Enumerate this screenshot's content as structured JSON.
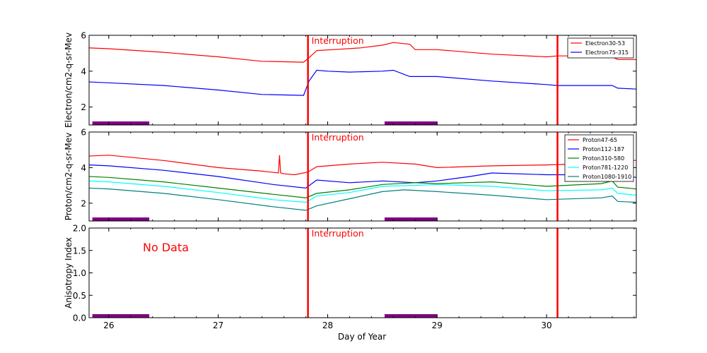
{
  "figure": {
    "xlabel": "Day of Year",
    "xlim": [
      25.82,
      30.82
    ],
    "xticks": [
      26,
      27,
      28,
      29,
      30
    ],
    "xtick_labels": [
      "26",
      "27",
      "28",
      "29",
      "30"
    ],
    "interruptions": [
      27.82,
      30.1
    ],
    "interruption_label": "Interruption",
    "bars": [
      [
        25.85,
        26.37
      ],
      [
        28.52,
        29.0
      ]
    ],
    "colors": {
      "interruption": "#ff0000",
      "bar": "#800080",
      "axis": "#000000"
    }
  },
  "chart_data": [
    {
      "type": "line",
      "panel": "electron",
      "ylabel": "Electron/cm2-q-sr-Mev",
      "ylim": [
        1,
        6
      ],
      "yticks": [
        2,
        4,
        6
      ],
      "ytick_labels": [
        "2",
        "4",
        "6"
      ],
      "legend_position": "top-right",
      "series": [
        {
          "name": "Electron30-53",
          "color": "#ff0000",
          "x": [
            25.82,
            26.0,
            26.5,
            27.0,
            27.4,
            27.78,
            27.83,
            27.9,
            28.05,
            28.3,
            28.5,
            28.6,
            28.75,
            28.8,
            29.0,
            29.5,
            30.0,
            30.1,
            30.5,
            30.6,
            30.65,
            30.82
          ],
          "values": [
            5.3,
            5.25,
            5.05,
            4.8,
            4.55,
            4.5,
            4.75,
            5.15,
            5.2,
            5.3,
            5.45,
            5.6,
            5.5,
            5.2,
            5.2,
            4.95,
            4.8,
            4.85,
            4.85,
            4.8,
            4.65,
            4.65
          ]
        },
        {
          "name": "Electron75-315",
          "color": "#0000ff",
          "x": [
            25.82,
            26.0,
            26.5,
            27.0,
            27.4,
            27.78,
            27.83,
            27.9,
            28.0,
            28.2,
            28.5,
            28.6,
            28.75,
            29.0,
            29.5,
            30.0,
            30.1,
            30.5,
            30.6,
            30.65,
            30.82
          ],
          "values": [
            3.4,
            3.35,
            3.2,
            2.95,
            2.7,
            2.65,
            3.45,
            4.05,
            4.0,
            3.95,
            4.0,
            4.05,
            3.7,
            3.7,
            3.45,
            3.25,
            3.2,
            3.2,
            3.2,
            3.05,
            3.0
          ]
        }
      ]
    },
    {
      "type": "line",
      "panel": "proton",
      "ylabel": "Proton/cm2-q-sr-Mev",
      "ylim": [
        1,
        6
      ],
      "yticks": [
        2,
        4,
        6
      ],
      "ytick_labels": [
        "2",
        "4",
        "6"
      ],
      "legend_position": "top-right",
      "series": [
        {
          "name": "Proton47-65",
          "color": "#ff0000",
          "x": [
            25.82,
            26.0,
            26.5,
            27.0,
            27.4,
            27.55,
            27.56,
            27.57,
            27.6,
            27.7,
            27.82,
            27.9,
            28.2,
            28.5,
            28.8,
            29.0,
            29.5,
            30.0,
            30.5,
            30.6,
            30.65,
            30.82
          ],
          "values": [
            4.65,
            4.7,
            4.4,
            4.0,
            3.8,
            3.7,
            4.7,
            3.7,
            3.65,
            3.6,
            3.75,
            4.05,
            4.2,
            4.3,
            4.2,
            4.0,
            4.1,
            4.15,
            4.25,
            4.6,
            4.45,
            4.4
          ]
        },
        {
          "name": "Proton112-187",
          "color": "#0000ff",
          "x": [
            25.82,
            26.0,
            26.5,
            27.0,
            27.5,
            27.8,
            27.9,
            28.2,
            28.5,
            28.8,
            29.0,
            29.3,
            29.5,
            30.0,
            30.5,
            30.6,
            30.65,
            30.82
          ],
          "values": [
            4.15,
            4.1,
            3.85,
            3.5,
            3.05,
            2.85,
            3.3,
            3.15,
            3.25,
            3.15,
            3.25,
            3.5,
            3.7,
            3.6,
            3.6,
            4.05,
            3.6,
            3.45
          ]
        },
        {
          "name": "Proton310-580",
          "color": "#008000",
          "x": [
            25.82,
            26.0,
            26.5,
            27.0,
            27.5,
            27.8,
            27.9,
            28.2,
            28.5,
            28.8,
            29.0,
            29.5,
            30.0,
            30.5,
            30.6,
            30.65,
            30.82
          ],
          "values": [
            3.5,
            3.45,
            3.2,
            2.85,
            2.5,
            2.3,
            2.55,
            2.75,
            3.05,
            3.15,
            3.1,
            3.2,
            2.95,
            3.1,
            3.25,
            2.9,
            2.8
          ]
        },
        {
          "name": "Proton781-1220",
          "color": "#00ffff",
          "x": [
            25.82,
            26.0,
            26.5,
            27.0,
            27.5,
            27.8,
            27.9,
            28.2,
            28.5,
            28.8,
            29.0,
            29.5,
            30.0,
            30.5,
            30.6,
            30.65,
            30.82
          ],
          "values": [
            3.25,
            3.2,
            2.95,
            2.6,
            2.2,
            2.05,
            2.4,
            2.6,
            2.95,
            3.0,
            3.05,
            2.95,
            2.7,
            2.75,
            2.85,
            2.55,
            2.45
          ]
        },
        {
          "name": "Proton1080-1910",
          "color": "#008080",
          "x": [
            25.82,
            26.0,
            26.5,
            27.0,
            27.5,
            27.8,
            27.9,
            28.2,
            28.5,
            28.7,
            29.0,
            29.5,
            30.0,
            30.5,
            30.6,
            30.65,
            30.82
          ],
          "values": [
            2.85,
            2.8,
            2.55,
            2.2,
            1.8,
            1.6,
            1.85,
            2.25,
            2.65,
            2.75,
            2.65,
            2.45,
            2.2,
            2.3,
            2.4,
            2.1,
            2.05
          ]
        }
      ]
    },
    {
      "type": "line",
      "panel": "anisotropy",
      "ylabel": "Anisotropy Index",
      "ylim": [
        0,
        2
      ],
      "yticks": [
        0,
        0.5,
        1,
        1.5,
        2
      ],
      "ytick_labels": [
        "0.0",
        "0.5",
        "1.0",
        "1.5",
        "2.0"
      ],
      "annotation": "No Data",
      "series": []
    }
  ]
}
